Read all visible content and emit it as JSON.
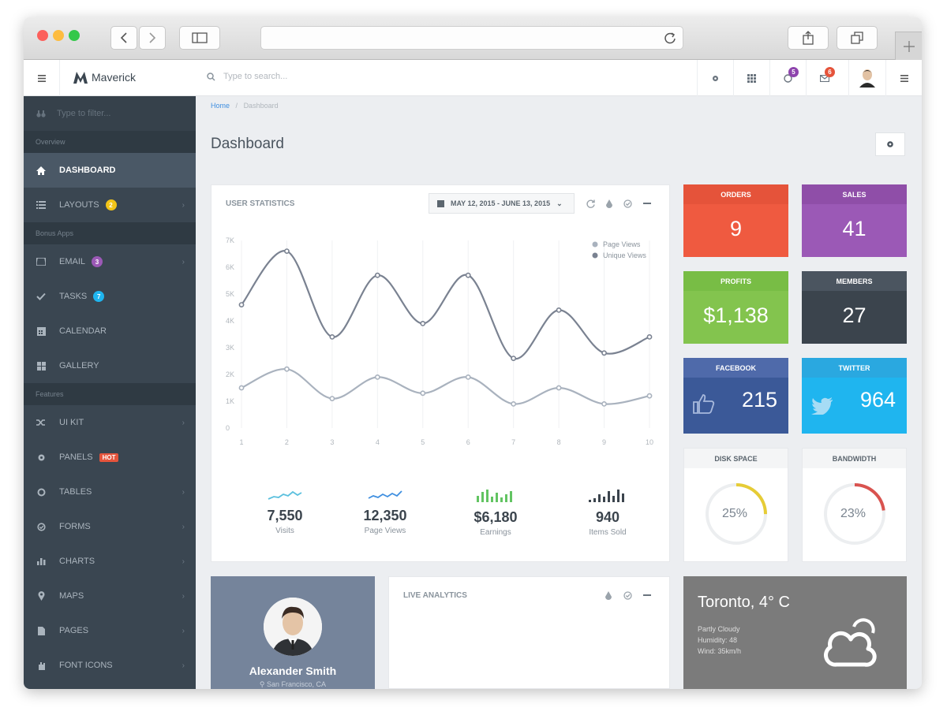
{
  "app": {
    "brand": "Maverick",
    "search_placeholder": "Type to search..."
  },
  "header_badges": {
    "notifications": "5",
    "messages": "6"
  },
  "sidebar": {
    "filter_placeholder": "Type to filter...",
    "sections": {
      "overview": "Overview",
      "bonus": "Bonus Apps",
      "features": "Features"
    },
    "items": [
      {
        "label": "DASHBOARD",
        "icon": "home-icon"
      },
      {
        "label": "LAYOUTS",
        "icon": "list-icon",
        "badge": "2"
      },
      {
        "label": "EMAIL",
        "icon": "inbox-icon",
        "badge": "3"
      },
      {
        "label": "TASKS",
        "icon": "check-icon",
        "badge": "7"
      },
      {
        "label": "CALENDAR",
        "icon": "calendar-icon"
      },
      {
        "label": "GALLERY",
        "icon": "grid-icon"
      },
      {
        "label": "UI KIT",
        "icon": "shuffle-icon"
      },
      {
        "label": "PANELS",
        "icon": "gear-icon",
        "hot": "HOT"
      },
      {
        "label": "TABLES",
        "icon": "circle-icon"
      },
      {
        "label": "FORMS",
        "icon": "check-circle-icon"
      },
      {
        "label": "CHARTS",
        "icon": "bar-chart-icon"
      },
      {
        "label": "MAPS",
        "icon": "map-pin-icon"
      },
      {
        "label": "PAGES",
        "icon": "file-icon"
      },
      {
        "label": "FONT ICONS",
        "icon": "hand-icon"
      }
    ]
  },
  "breadcrumb": {
    "home": "Home",
    "sep": "/",
    "current": "Dashboard"
  },
  "page_title": "Dashboard",
  "user_statistics": {
    "title": "USER STATISTICS",
    "date_range": "MAY 12, 2015 - JUNE 13, 2015",
    "kpis": [
      {
        "value": "7,550",
        "label": "Visits"
      },
      {
        "value": "12,350",
        "label": "Page Views"
      },
      {
        "value": "$6,180",
        "label": "Earnings"
      },
      {
        "value": "940",
        "label": "Items Sold"
      }
    ]
  },
  "chart_data": {
    "type": "line",
    "x": [
      1,
      2,
      3,
      4,
      5,
      6,
      7,
      8,
      9,
      10
    ],
    "yticks": [
      "0",
      "1K",
      "2K",
      "3K",
      "4K",
      "5K",
      "6K",
      "7K"
    ],
    "ylim": [
      0,
      7000
    ],
    "series": [
      {
        "name": "Page Views",
        "color": "#a9b2be",
        "values": [
          1500,
          2200,
          1100,
          1900,
          1300,
          1900,
          900,
          1500,
          900,
          1200
        ]
      },
      {
        "name": "Unique Views",
        "color": "#7a8291",
        "values": [
          4600,
          6600,
          3400,
          5700,
          3900,
          5700,
          2600,
          4400,
          2800,
          3400
        ]
      }
    ],
    "legend_position": "top-right",
    "grid": true
  },
  "tiles": {
    "orders": {
      "label": "ORDERS",
      "value": "9",
      "head": "#e5533a",
      "body": "#ef5a40"
    },
    "sales": {
      "label": "SALES",
      "value": "41",
      "head": "#8f4ea8",
      "body": "#9b59b6"
    },
    "profits": {
      "label": "PROFITS",
      "value": "$1,138",
      "head": "#78bd45",
      "body": "#83c44e"
    },
    "members": {
      "label": "MEMBERS",
      "value": "27",
      "head": "#4b5560",
      "body": "#3b444d"
    },
    "facebook": {
      "label": "FACEBOOK",
      "value": "215",
      "head": "#4f6aaa",
      "body": "#3b5998"
    },
    "twitter": {
      "label": "TWITTER",
      "value": "964",
      "head": "#2aa8e0",
      "body": "#1fb5ef"
    }
  },
  "gauges": {
    "disk": {
      "label": "DISK SPACE",
      "text": "25%",
      "fraction": 0.25,
      "color": "#e6cc36"
    },
    "bandwidth": {
      "label": "BANDWIDTH",
      "text": "23%",
      "fraction": 0.23,
      "color": "#d9534f"
    }
  },
  "profile": {
    "name": "Alexander Smith",
    "location": "San Francisco, CA"
  },
  "analytics": {
    "title": "LIVE ANALYTICS"
  },
  "weather": {
    "city": "Toronto, 4° C",
    "condition": "Partly Cloudy",
    "humidity": "Humidity: 48",
    "wind": "Wind: 35km/h"
  }
}
